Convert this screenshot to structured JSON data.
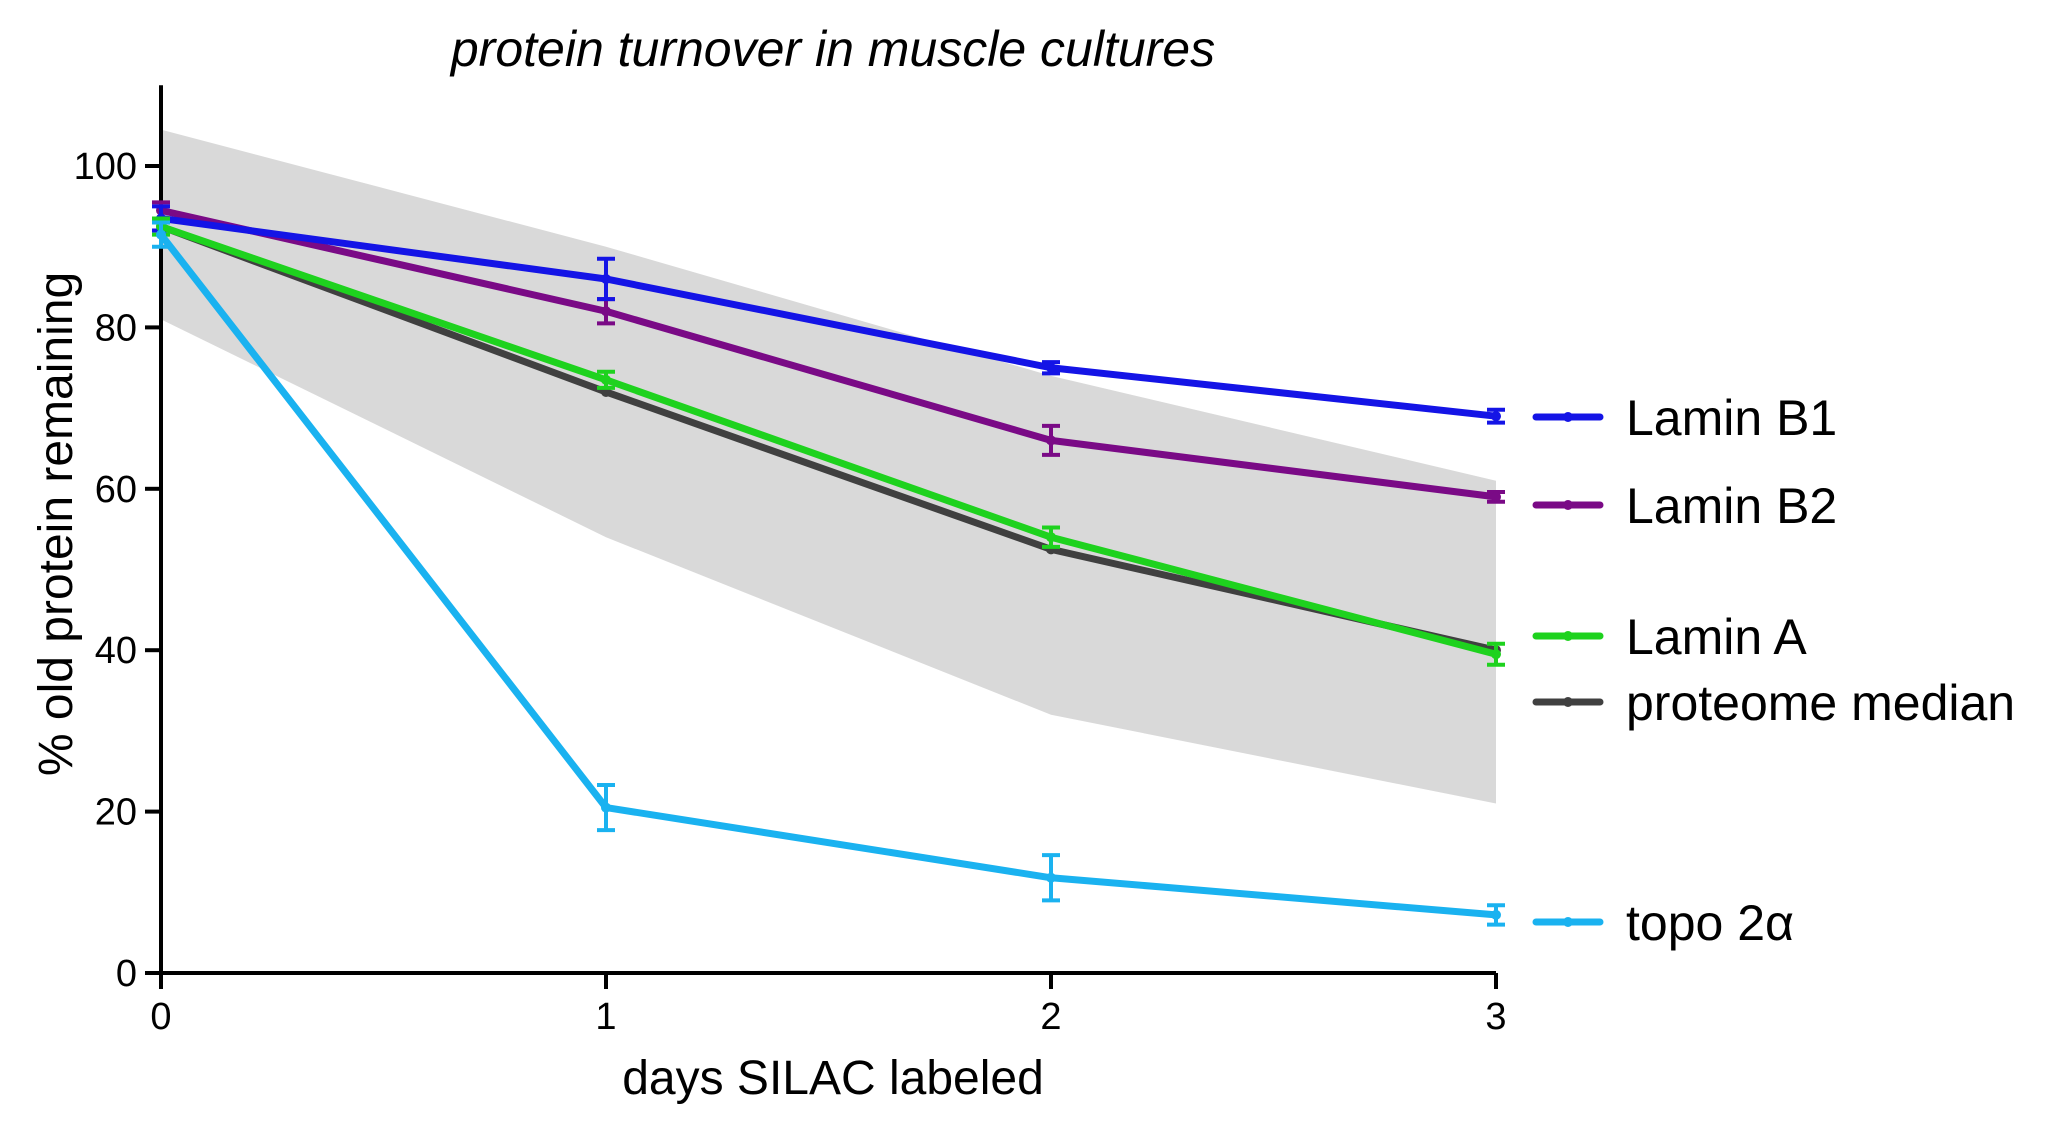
{
  "chart_data": {
    "type": "line",
    "title": "protein turnover in muscle cultures",
    "xlabel": "days SILAC labeled",
    "ylabel": "% old protein remaining",
    "xlim": [
      0,
      3
    ],
    "ylim": [
      0,
      110
    ],
    "x_ticks": [
      "0",
      "1",
      "2",
      "3"
    ],
    "y_ticks": [
      "0",
      "20",
      "40",
      "60",
      "80",
      "100"
    ],
    "x": [
      0,
      1,
      2,
      3
    ],
    "grid": false,
    "legend_position": "right",
    "band": {
      "upper": [
        104.5,
        90,
        74,
        61
      ],
      "lower": [
        81,
        54,
        32,
        21
      ],
      "color": "#d9d9d9"
    },
    "series": [
      {
        "name": "Lamin B1",
        "color": "#1414e6",
        "values": [
          93.5,
          86,
          75,
          69
        ],
        "errors": [
          1.5,
          2.5,
          0.7,
          0.8
        ]
      },
      {
        "name": "Lamin B2",
        "color": "#7a0a86",
        "values": [
          94.5,
          82,
          66,
          59
        ],
        "errors": [
          1.0,
          1.5,
          1.8,
          0.6
        ]
      },
      {
        "name": "Lamin A",
        "color": "#1ed21e",
        "values": [
          92.5,
          73.5,
          54,
          39.5
        ],
        "errors": [
          1.0,
          1.0,
          1.2,
          1.3
        ]
      },
      {
        "name": "proteome median",
        "color": "#404040",
        "values": [
          92.5,
          72,
          52.5,
          40
        ],
        "errors": [
          0,
          0,
          0,
          0
        ]
      },
      {
        "name": "topo 2α",
        "color": "#1ab2f0",
        "values": [
          91.5,
          20.5,
          11.8,
          7.2
        ],
        "errors": [
          1.5,
          2.8,
          2.8,
          1.2
        ]
      }
    ]
  }
}
